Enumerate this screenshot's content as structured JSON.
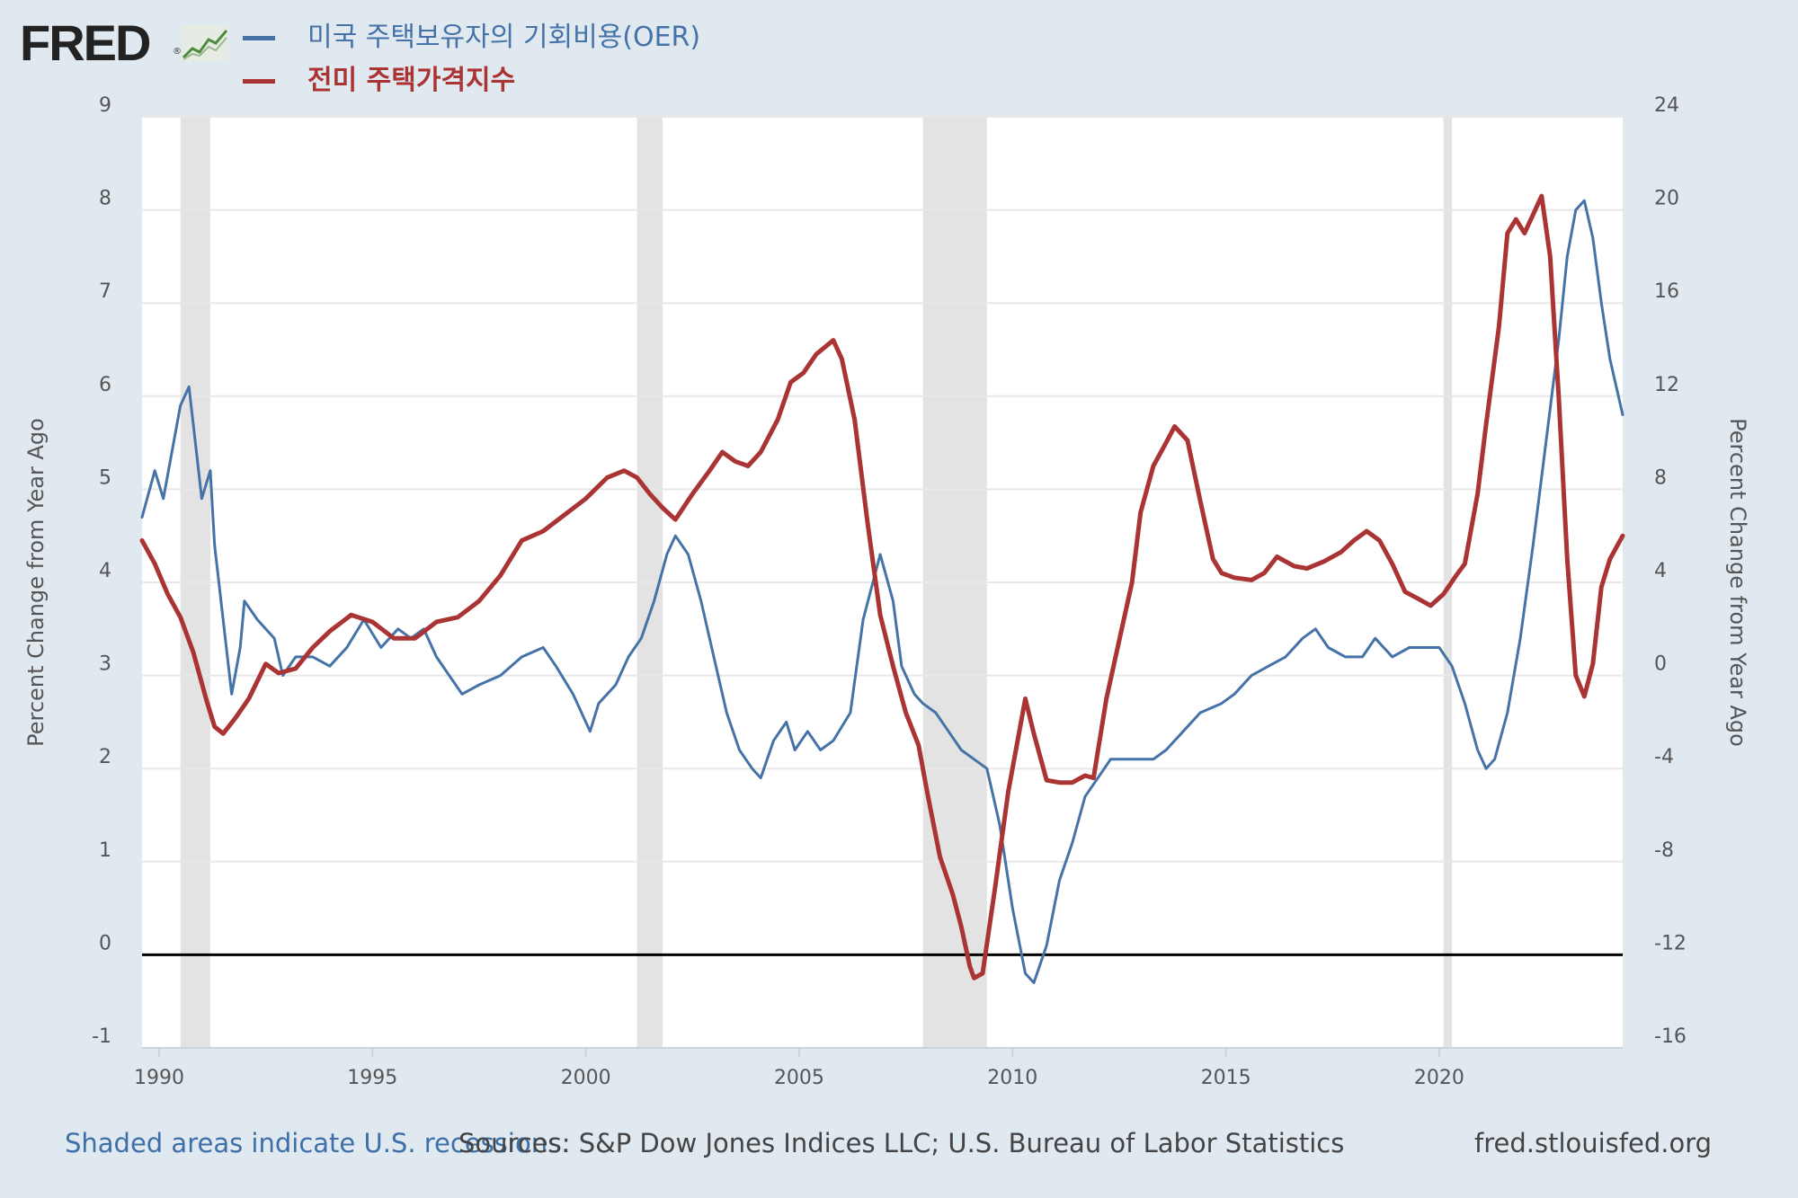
{
  "header": {
    "logo_text": "FRED",
    "logo_reg_mark": "®",
    "logo_icon": "line-graph-icon"
  },
  "legend": [
    {
      "label": "미국 주택보유자의 기회비용(OER)",
      "color": "#4572a7"
    },
    {
      "label": "전미 주택가격지수",
      "color": "#aa3333"
    }
  ],
  "footer": {
    "recession_note": "Shaded areas indicate U.S. recessions.",
    "sources": "Sources: S&P Dow Jones Indices LLC; U.S. Bureau of Labor Statistics",
    "site": "fred.stlouisfed.org"
  },
  "chart_data": {
    "type": "line",
    "title": "",
    "xlabel": "",
    "x_range": [
      1989.6,
      2024.3
    ],
    "x_ticks": [
      1990,
      1995,
      2000,
      2005,
      2010,
      2015,
      2020
    ],
    "left_axis": {
      "label": "Percent Change from Year Ago",
      "range": [
        -1,
        9
      ],
      "ticks": [
        -1,
        0,
        1,
        2,
        3,
        4,
        5,
        6,
        7,
        8,
        9
      ]
    },
    "right_axis": {
      "label": "Percent Change from Year Ago",
      "range": [
        -16,
        24
      ],
      "ticks": [
        -16,
        -12,
        -8,
        -4,
        0,
        4,
        8,
        12,
        16,
        20,
        24
      ]
    },
    "zero_line": 0,
    "grid": true,
    "recessions": [
      [
        1990.5,
        1991.2
      ],
      [
        2001.2,
        2001.8
      ],
      [
        2007.9,
        2009.4
      ],
      [
        2020.1,
        2020.3
      ]
    ],
    "series": [
      {
        "name": "미국 주택보유자의 기회비용(OER)",
        "axis": "left",
        "color": "#4572a7",
        "points": [
          [
            1989.6,
            4.7
          ],
          [
            1989.9,
            5.2
          ],
          [
            1990.1,
            4.9
          ],
          [
            1990.3,
            5.4
          ],
          [
            1990.5,
            5.9
          ],
          [
            1990.7,
            6.1
          ],
          [
            1990.9,
            5.3
          ],
          [
            1991.0,
            4.9
          ],
          [
            1991.2,
            5.2
          ],
          [
            1991.3,
            4.4
          ],
          [
            1991.5,
            3.6
          ],
          [
            1991.7,
            2.8
          ],
          [
            1991.9,
            3.3
          ],
          [
            1992.0,
            3.8
          ],
          [
            1992.3,
            3.6
          ],
          [
            1992.7,
            3.4
          ],
          [
            1992.9,
            3.0
          ],
          [
            1993.2,
            3.2
          ],
          [
            1993.6,
            3.2
          ],
          [
            1994.0,
            3.1
          ],
          [
            1994.4,
            3.3
          ],
          [
            1994.8,
            3.6
          ],
          [
            1995.2,
            3.3
          ],
          [
            1995.6,
            3.5
          ],
          [
            1995.9,
            3.4
          ],
          [
            1996.2,
            3.5
          ],
          [
            1996.5,
            3.2
          ],
          [
            1996.8,
            3.0
          ],
          [
            1997.1,
            2.8
          ],
          [
            1997.5,
            2.9
          ],
          [
            1998.0,
            3.0
          ],
          [
            1998.5,
            3.2
          ],
          [
            1999.0,
            3.3
          ],
          [
            1999.3,
            3.1
          ],
          [
            1999.7,
            2.8
          ],
          [
            2000.0,
            2.5
          ],
          [
            2000.1,
            2.4
          ],
          [
            2000.3,
            2.7
          ],
          [
            2000.7,
            2.9
          ],
          [
            2001.0,
            3.2
          ],
          [
            2001.3,
            3.4
          ],
          [
            2001.6,
            3.8
          ],
          [
            2001.9,
            4.3
          ],
          [
            2002.1,
            4.5
          ],
          [
            2002.4,
            4.3
          ],
          [
            2002.7,
            3.8
          ],
          [
            2003.0,
            3.2
          ],
          [
            2003.3,
            2.6
          ],
          [
            2003.6,
            2.2
          ],
          [
            2003.9,
            2.0
          ],
          [
            2004.1,
            1.9
          ],
          [
            2004.4,
            2.3
          ],
          [
            2004.7,
            2.5
          ],
          [
            2004.9,
            2.2
          ],
          [
            2005.2,
            2.4
          ],
          [
            2005.5,
            2.2
          ],
          [
            2005.8,
            2.3
          ],
          [
            2006.2,
            2.6
          ],
          [
            2006.5,
            3.6
          ],
          [
            2006.9,
            4.3
          ],
          [
            2007.2,
            3.8
          ],
          [
            2007.4,
            3.1
          ],
          [
            2007.7,
            2.8
          ],
          [
            2007.9,
            2.7
          ],
          [
            2008.2,
            2.6
          ],
          [
            2008.5,
            2.4
          ],
          [
            2008.8,
            2.2
          ],
          [
            2009.1,
            2.1
          ],
          [
            2009.4,
            2.0
          ],
          [
            2009.7,
            1.4
          ],
          [
            2010.0,
            0.5
          ],
          [
            2010.3,
            -0.2
          ],
          [
            2010.5,
            -0.3
          ],
          [
            2010.8,
            0.1
          ],
          [
            2011.1,
            0.8
          ],
          [
            2011.4,
            1.2
          ],
          [
            2011.7,
            1.7
          ],
          [
            2012.0,
            1.9
          ],
          [
            2012.3,
            2.1
          ],
          [
            2012.7,
            2.1
          ],
          [
            2013.0,
            2.1
          ],
          [
            2013.3,
            2.1
          ],
          [
            2013.6,
            2.2
          ],
          [
            2014.0,
            2.4
          ],
          [
            2014.4,
            2.6
          ],
          [
            2014.9,
            2.7
          ],
          [
            2015.2,
            2.8
          ],
          [
            2015.6,
            3.0
          ],
          [
            2016.0,
            3.1
          ],
          [
            2016.4,
            3.2
          ],
          [
            2016.8,
            3.4
          ],
          [
            2017.1,
            3.5
          ],
          [
            2017.4,
            3.3
          ],
          [
            2017.8,
            3.2
          ],
          [
            2018.2,
            3.2
          ],
          [
            2018.5,
            3.4
          ],
          [
            2018.9,
            3.2
          ],
          [
            2019.3,
            3.3
          ],
          [
            2019.7,
            3.3
          ],
          [
            2020.0,
            3.3
          ],
          [
            2020.3,
            3.1
          ],
          [
            2020.6,
            2.7
          ],
          [
            2020.9,
            2.2
          ],
          [
            2021.1,
            2.0
          ],
          [
            2021.3,
            2.1
          ],
          [
            2021.6,
            2.6
          ],
          [
            2021.9,
            3.4
          ],
          [
            2022.2,
            4.4
          ],
          [
            2022.5,
            5.5
          ],
          [
            2022.8,
            6.6
          ],
          [
            2023.0,
            7.5
          ],
          [
            2023.2,
            8.0
          ],
          [
            2023.4,
            8.1
          ],
          [
            2023.6,
            7.7
          ],
          [
            2023.8,
            7.0
          ],
          [
            2024.0,
            6.4
          ],
          [
            2024.3,
            5.8
          ]
        ]
      },
      {
        "name": "전미 주택가격지수",
        "axis": "right",
        "color": "#aa3333",
        "points": [
          [
            1989.6,
            5.8
          ],
          [
            1989.9,
            4.8
          ],
          [
            1990.2,
            3.5
          ],
          [
            1990.5,
            2.5
          ],
          [
            1990.8,
            1.0
          ],
          [
            1991.1,
            -1.0
          ],
          [
            1991.3,
            -2.2
          ],
          [
            1991.5,
            -2.5
          ],
          [
            1991.8,
            -1.8
          ],
          [
            1992.1,
            -1.0
          ],
          [
            1992.5,
            0.5
          ],
          [
            1992.8,
            0.1
          ],
          [
            1993.2,
            0.3
          ],
          [
            1993.6,
            1.2
          ],
          [
            1994.0,
            1.9
          ],
          [
            1994.5,
            2.6
          ],
          [
            1995.0,
            2.3
          ],
          [
            1995.5,
            1.6
          ],
          [
            1996.0,
            1.6
          ],
          [
            1996.5,
            2.3
          ],
          [
            1997.0,
            2.5
          ],
          [
            1997.5,
            3.2
          ],
          [
            1998.0,
            4.3
          ],
          [
            1998.5,
            5.8
          ],
          [
            1999.0,
            6.2
          ],
          [
            1999.5,
            6.9
          ],
          [
            2000.0,
            7.6
          ],
          [
            2000.5,
            8.5
          ],
          [
            2000.9,
            8.8
          ],
          [
            2001.2,
            8.5
          ],
          [
            2001.5,
            7.8
          ],
          [
            2001.8,
            7.2
          ],
          [
            2002.1,
            6.7
          ],
          [
            2002.5,
            7.8
          ],
          [
            2002.9,
            8.8
          ],
          [
            2003.2,
            9.6
          ],
          [
            2003.5,
            9.2
          ],
          [
            2003.8,
            9.0
          ],
          [
            2004.1,
            9.6
          ],
          [
            2004.5,
            11.0
          ],
          [
            2004.8,
            12.6
          ],
          [
            2005.1,
            13.0
          ],
          [
            2005.4,
            13.8
          ],
          [
            2005.8,
            14.4
          ],
          [
            2006.0,
            13.6
          ],
          [
            2006.3,
            11.0
          ],
          [
            2006.6,
            6.6
          ],
          [
            2006.9,
            2.6
          ],
          [
            2007.2,
            0.4
          ],
          [
            2007.5,
            -1.6
          ],
          [
            2007.8,
            -3.0
          ],
          [
            2008.0,
            -5.0
          ],
          [
            2008.3,
            -7.8
          ],
          [
            2008.6,
            -9.4
          ],
          [
            2008.8,
            -10.8
          ],
          [
            2009.0,
            -12.5
          ],
          [
            2009.1,
            -13.0
          ],
          [
            2009.3,
            -12.8
          ],
          [
            2009.6,
            -9.0
          ],
          [
            2009.9,
            -5.0
          ],
          [
            2010.1,
            -3.0
          ],
          [
            2010.3,
            -1.0
          ],
          [
            2010.5,
            -2.5
          ],
          [
            2010.8,
            -4.5
          ],
          [
            2011.1,
            -4.6
          ],
          [
            2011.4,
            -4.6
          ],
          [
            2011.7,
            -4.3
          ],
          [
            2011.9,
            -4.4
          ],
          [
            2012.2,
            -1.0
          ],
          [
            2012.5,
            1.5
          ],
          [
            2012.8,
            4.0
          ],
          [
            2013.0,
            7.0
          ],
          [
            2013.3,
            9.0
          ],
          [
            2013.6,
            10.0
          ],
          [
            2013.8,
            10.7
          ],
          [
            2014.1,
            10.1
          ],
          [
            2014.4,
            7.5
          ],
          [
            2014.7,
            5.0
          ],
          [
            2014.9,
            4.4
          ],
          [
            2015.2,
            4.2
          ],
          [
            2015.6,
            4.1
          ],
          [
            2015.9,
            4.4
          ],
          [
            2016.2,
            5.1
          ],
          [
            2016.6,
            4.7
          ],
          [
            2016.9,
            4.6
          ],
          [
            2017.3,
            4.9
          ],
          [
            2017.7,
            5.3
          ],
          [
            2018.0,
            5.8
          ],
          [
            2018.3,
            6.2
          ],
          [
            2018.6,
            5.8
          ],
          [
            2018.9,
            4.8
          ],
          [
            2019.2,
            3.6
          ],
          [
            2019.5,
            3.3
          ],
          [
            2019.8,
            3.0
          ],
          [
            2020.1,
            3.5
          ],
          [
            2020.4,
            4.3
          ],
          [
            2020.6,
            4.8
          ],
          [
            2020.9,
            7.8
          ],
          [
            2021.1,
            10.8
          ],
          [
            2021.4,
            15.0
          ],
          [
            2021.6,
            19.0
          ],
          [
            2021.8,
            19.6
          ],
          [
            2022.0,
            19.0
          ],
          [
            2022.2,
            19.8
          ],
          [
            2022.4,
            20.6
          ],
          [
            2022.6,
            18.0
          ],
          [
            2022.8,
            12.0
          ],
          [
            2023.0,
            5.0
          ],
          [
            2023.2,
            0.0
          ],
          [
            2023.4,
            -0.9
          ],
          [
            2023.6,
            0.5
          ],
          [
            2023.8,
            3.8
          ],
          [
            2024.0,
            5.0
          ],
          [
            2024.3,
            6.0
          ]
        ]
      }
    ]
  }
}
